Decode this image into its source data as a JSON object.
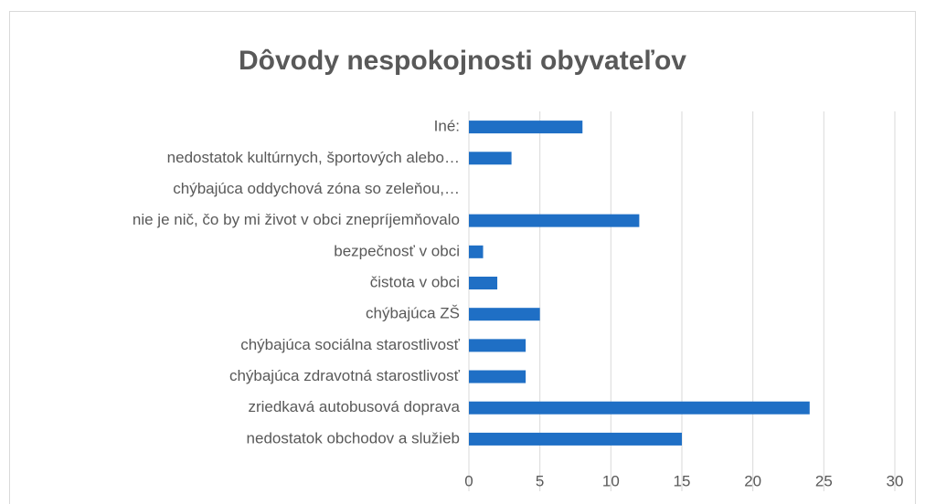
{
  "chart_data": {
    "type": "bar",
    "orientation": "horizontal",
    "title": "Dôvody nespokojnosti obyvateľov",
    "categories": [
      "Iné:",
      "nedostatok kultúrnych, športových alebo…",
      "chýbajúca oddychová zóna so zeleňou,…",
      "nie je nič, čo by mi život v obci znepríjemňovalo",
      "bezpečnosť v obci",
      "čistota v obci",
      "chýbajúca ZŠ",
      "chýbajúca sociálna starostlivosť",
      "chýbajúca zdravotná starostlivosť",
      "zriedkavá autobusová doprava",
      "nedostatok obchodov a služieb"
    ],
    "values": [
      8,
      3,
      0,
      12,
      1,
      2,
      5,
      4,
      4,
      24,
      15
    ],
    "color": "#1f6fc5",
    "xlim": [
      0,
      30
    ],
    "xticks": [
      0,
      5,
      10,
      15,
      20,
      25,
      30
    ],
    "grid": true
  }
}
